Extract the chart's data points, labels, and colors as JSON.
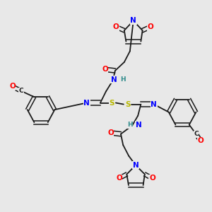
{
  "bg_color": "#e8e8e8",
  "bond_color": "#1a1a1a",
  "atom_colors": {
    "O": "#ff0000",
    "N": "#0000ff",
    "S": "#b8b800",
    "C": "#1a1a1a",
    "H": "#2e8b8b"
  }
}
